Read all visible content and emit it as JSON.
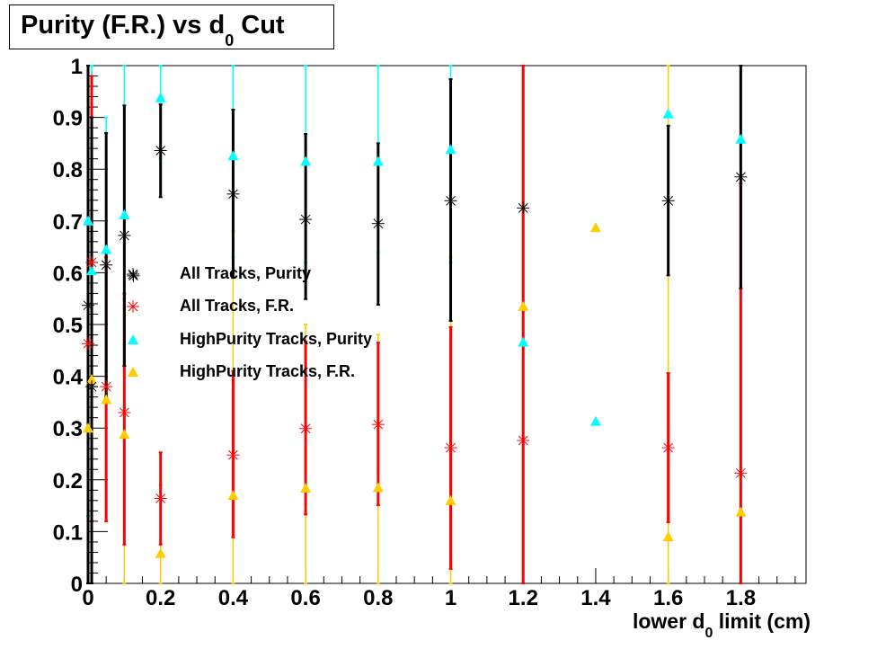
{
  "chart_data": {
    "type": "scatter",
    "title": "Purity (F.R.) vs d0 Cut",
    "title_main": "Purity (F.R.) vs d",
    "title_sub": "0",
    "title_end": " Cut",
    "xlabel": "lower d0 limit (cm)",
    "xlabel_pre": "lower d",
    "xlabel_sub": "0",
    "xlabel_post": " limit (cm)",
    "ylabel": "",
    "xlim": [
      0,
      1.98
    ],
    "ylim": [
      0,
      1
    ],
    "xticks": [
      0,
      0.2,
      0.4,
      0.6,
      0.8,
      1,
      1.2,
      1.4,
      1.6,
      1.8
    ],
    "xtick_labels": [
      "0",
      "0.2",
      "0.4",
      "0.6",
      "0.8",
      "1",
      "1.2",
      "1.4",
      "1.6",
      "1.8"
    ],
    "yticks": [
      0,
      0.1,
      0.2,
      0.3,
      0.4,
      0.5,
      0.6,
      0.7,
      0.8,
      0.9,
      1
    ],
    "ytick_labels": [
      "0",
      "0.1",
      "0.2",
      "0.3",
      "0.4",
      "0.5",
      "0.6",
      "0.7",
      "0.8",
      "0.9",
      "1"
    ],
    "grid": false,
    "legend_placement": "center-left",
    "series": [
      {
        "name": "HighPurity Tracks, F.R.",
        "marker": "triangle",
        "color": "#ffcc00",
        "points": [
          [
            0,
            0.3,
            0,
            1
          ],
          [
            0.01,
            0.394,
            0,
            1
          ],
          [
            0.05,
            0.355,
            0.12,
            0.63
          ],
          [
            0.1,
            0.288,
            0,
            1
          ],
          [
            0.2,
            0.058,
            0,
            0.19
          ],
          [
            0.4,
            0.17,
            0,
            0.68
          ],
          [
            0.6,
            0.184,
            0,
            0.5
          ],
          [
            0.8,
            0.185,
            0,
            0.48
          ],
          [
            1.0,
            0.16,
            0,
            0.63
          ],
          [
            1.2,
            0.535,
            0,
            1
          ],
          [
            1.4,
            0.687,
            0.687,
            0.687
          ],
          [
            1.6,
            0.09,
            0,
            1
          ],
          [
            1.8,
            0.138,
            0,
            1
          ]
        ]
      },
      {
        "name": "HighPurity Tracks, Purity",
        "marker": "triangle",
        "color": "#00ffff",
        "points": [
          [
            0,
            0.7,
            0.13,
            1
          ],
          [
            0.01,
            0.604,
            0.12,
            1
          ],
          [
            0.05,
            0.645,
            0.41,
            0.9
          ],
          [
            0.1,
            0.712,
            0.55,
            1
          ],
          [
            0.2,
            0.938,
            0.82,
            1
          ],
          [
            0.4,
            0.826,
            0.63,
            1
          ],
          [
            0.6,
            0.815,
            0.62,
            1
          ],
          [
            0.8,
            0.815,
            0.64,
            1
          ],
          [
            1.0,
            0.838,
            0.62,
            1
          ],
          [
            1.2,
            0.466,
            0.466,
            0.466
          ],
          [
            1.4,
            0.313,
            0.313,
            0.313
          ],
          [
            1.6,
            0.907,
            0.907,
            0.907
          ],
          [
            1.8,
            0.858,
            0.858,
            0.858
          ]
        ]
      },
      {
        "name": "All Tracks, F.R.",
        "marker": "star",
        "color": "#ff0000",
        "points": [
          [
            0,
            0.463,
            0,
            1
          ],
          [
            0.01,
            0.62,
            0.12,
            0.98
          ],
          [
            0.05,
            0.38,
            0.12,
            0.63
          ],
          [
            0.1,
            0.33,
            0.075,
            0.56
          ],
          [
            0.2,
            0.164,
            0.075,
            0.253
          ],
          [
            0.4,
            0.248,
            0.089,
            0.41
          ],
          [
            0.6,
            0.299,
            0.133,
            0.467
          ],
          [
            0.8,
            0.307,
            0.151,
            0.465
          ],
          [
            1.0,
            0.262,
            0.028,
            0.495
          ],
          [
            1.2,
            0.276,
            0,
            1
          ],
          [
            1.6,
            0.262,
            0.118,
            0.406
          ],
          [
            1.8,
            0.213,
            0,
            0.772
          ]
        ]
      },
      {
        "name": "All Tracks, Purity",
        "marker": "star",
        "color": "#000000",
        "points": [
          [
            0,
            0.537,
            0,
            1
          ],
          [
            0.01,
            0.38,
            0,
            0.9
          ],
          [
            0.05,
            0.615,
            0.36,
            0.87
          ],
          [
            0.1,
            0.672,
            0.42,
            0.923
          ],
          [
            0.125,
            0.594,
            0.594,
            0.594
          ],
          [
            0.2,
            0.836,
            0.746,
            0.925
          ],
          [
            0.4,
            0.752,
            0.59,
            0.915
          ],
          [
            0.6,
            0.703,
            0.549,
            0.868
          ],
          [
            0.8,
            0.695,
            0.538,
            0.85
          ],
          [
            1.0,
            0.739,
            0.507,
            0.974
          ],
          [
            1.2,
            0.725,
            0.725,
            0.725
          ],
          [
            1.6,
            0.739,
            0.595,
            0.884
          ],
          [
            1.8,
            0.785,
            0.57,
            1
          ]
        ]
      }
    ],
    "legend": [
      {
        "label": "All Tracks, Purity",
        "marker": "star",
        "color": "#000000"
      },
      {
        "label": "All Tracks, F.R.",
        "marker": "star",
        "color": "#ff0000"
      },
      {
        "label": "HighPurity Tracks, Purity",
        "marker": "triangle",
        "color": "#00ffff"
      },
      {
        "label": "HighPurity Tracks, F.R.",
        "marker": "triangle",
        "color": "#ffcc00"
      }
    ]
  }
}
